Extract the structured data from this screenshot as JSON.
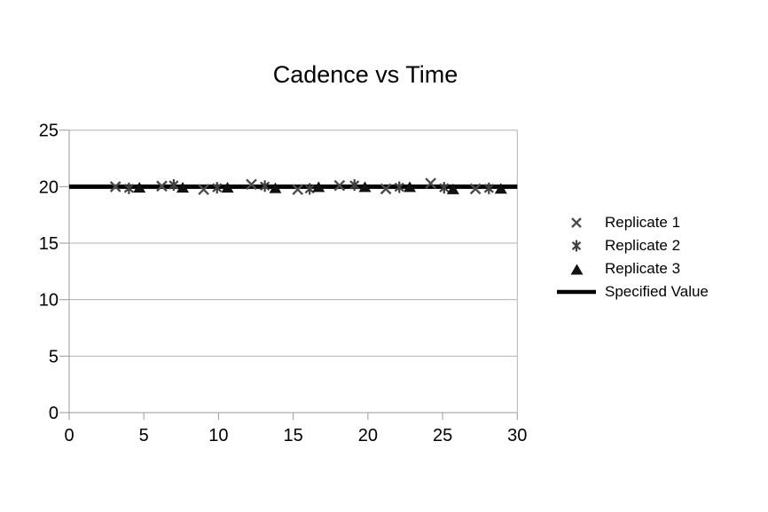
{
  "title": "Cadence vs Time",
  "colors": {
    "replicate1": "#4d4d4d",
    "replicate2": "#404040",
    "replicate3": "#111111",
    "specified_value": "#000000",
    "gridline": "#b3b3b3",
    "axis": "#999999",
    "tick_text": "#000000",
    "background": "#ffffff"
  },
  "chart_data": {
    "type": "scatter",
    "title": "Cadence vs Time",
    "xlabel": "",
    "ylabel": "",
    "xlim": [
      0,
      30
    ],
    "ylim": [
      0,
      25
    ],
    "xticks": [
      0,
      5,
      10,
      15,
      20,
      25,
      30
    ],
    "yticks": [
      0,
      5,
      10,
      15,
      20,
      25
    ],
    "grid": "horizontal",
    "legend_position": "right",
    "series": [
      {
        "name": "Replicate 1",
        "type": "scatter",
        "marker": "x",
        "color": "#4d4d4d",
        "x": [
          3.1,
          6.2,
          9.0,
          12.2,
          15.3,
          18.1,
          21.2,
          24.2,
          27.2
        ],
        "y": [
          20.0,
          20.05,
          19.75,
          20.2,
          19.75,
          20.1,
          19.8,
          20.3,
          19.8
        ]
      },
      {
        "name": "Replicate 2",
        "type": "scatter",
        "marker": "asterisk",
        "color": "#404040",
        "x": [
          4.0,
          7.0,
          9.9,
          13.1,
          16.1,
          19.1,
          22.1,
          25.1,
          28.1
        ],
        "y": [
          19.85,
          20.15,
          19.9,
          20.05,
          19.8,
          20.15,
          19.95,
          19.9,
          19.85
        ]
      },
      {
        "name": "Replicate 3",
        "type": "scatter",
        "marker": "triangle-filled",
        "color": "#111111",
        "x": [
          4.7,
          7.6,
          10.6,
          13.8,
          16.7,
          19.8,
          22.8,
          25.7,
          28.9
        ],
        "y": [
          19.95,
          19.95,
          19.95,
          19.9,
          20.0,
          20.0,
          20.0,
          19.8,
          19.85
        ]
      },
      {
        "name": "Specified Value",
        "type": "line",
        "color": "#000000",
        "value": 20,
        "x_start": 0,
        "x_end": 30
      }
    ]
  }
}
